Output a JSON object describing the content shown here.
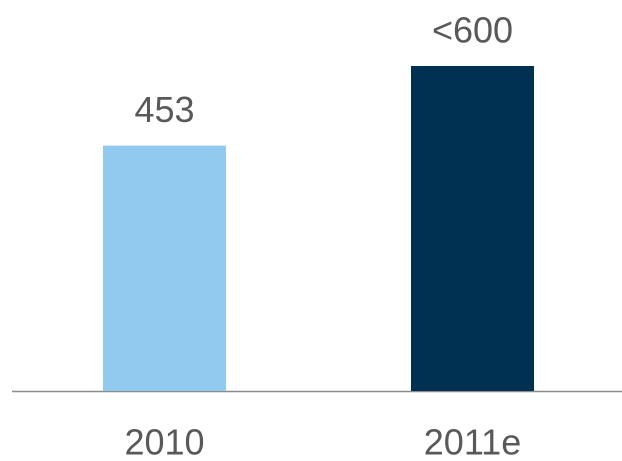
{
  "chart_data": {
    "type": "bar",
    "categories": [
      "2010",
      "2011e"
    ],
    "values": [
      453,
      600
    ],
    "value_labels": [
      "453",
      "<600"
    ],
    "colors": [
      "#92c9ee",
      "#003153"
    ]
  }
}
